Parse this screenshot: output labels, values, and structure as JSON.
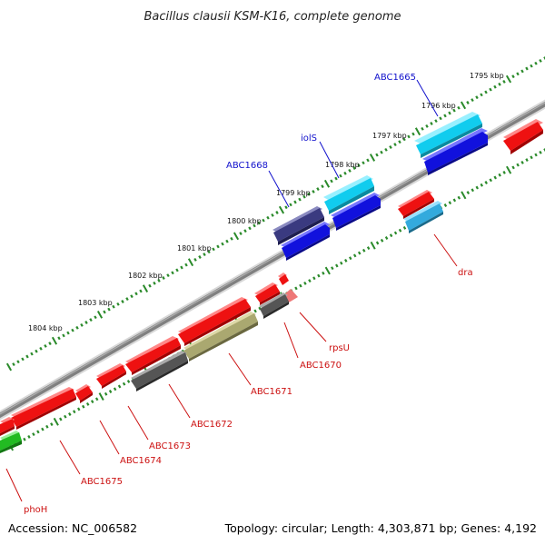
{
  "title": "Bacillus clausii KSM-K16, complete genome",
  "footer": {
    "accession": "Accession: NC_006582",
    "summary": "Topology: circular; Length: 4,303,871 bp; Genes: 4,192"
  },
  "colors": {
    "background": "#ffffff",
    "backbone": "#777777",
    "tick_marks": "#2a8a2a",
    "label_forward": "#1111cc",
    "label_reverse": "#cc1111",
    "feature_red": "#ee1111",
    "feature_blue": "#1111dd",
    "feature_cyan": "#11ccee",
    "feature_navy": "#3a3a80",
    "feature_gray": "#555555",
    "feature_olive": "#aaa870",
    "feature_green": "#22bb22",
    "feature_pink": "#ee7777",
    "feature_skyblue": "#33aadd"
  },
  "scale_ticks": [
    "1795 kbp",
    "1796 kbp",
    "1797 kbp",
    "1798 kbp",
    "1799 kbp",
    "1800 kbp",
    "1801 kbp",
    "1802 kbp",
    "1803 kbp",
    "1804 kbp"
  ],
  "labels_forward": [
    "ABC1665",
    "iolS",
    "ABC1668"
  ],
  "labels_reverse": [
    "dra",
    "rpsU",
    "ABC1670",
    "ABC1671",
    "ABC1672",
    "ABC1673",
    "ABC1674",
    "ABC1675",
    "phoH"
  ]
}
